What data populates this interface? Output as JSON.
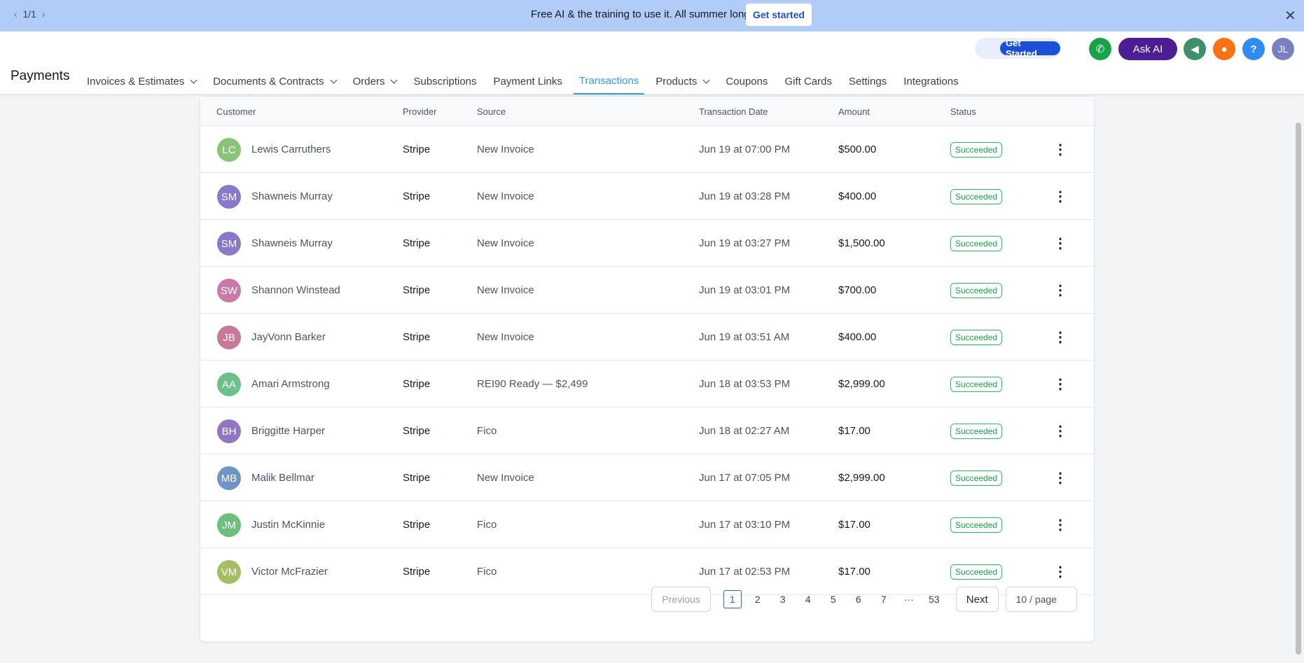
{
  "banner": {
    "pager": "1/1",
    "text": "Free AI & the training to use it. All summer long.",
    "button": "Get started"
  },
  "header": {
    "get_started": "Get Started",
    "ask_ai": "Ask AI",
    "help": "?",
    "avatar": "JL",
    "title": "Payments",
    "nav": [
      {
        "label": "Invoices & Estimates",
        "dropdown": true
      },
      {
        "label": "Documents & Contracts",
        "dropdown": true
      },
      {
        "label": "Orders",
        "dropdown": true
      },
      {
        "label": "Subscriptions"
      },
      {
        "label": "Payment Links"
      },
      {
        "label": "Transactions",
        "active": true
      },
      {
        "label": "Products",
        "dropdown": true
      },
      {
        "label": "Coupons"
      },
      {
        "label": "Gift Cards"
      },
      {
        "label": "Settings"
      },
      {
        "label": "Integrations"
      }
    ]
  },
  "table": {
    "columns": [
      "Customer",
      "Provider",
      "Source",
      "Transaction Date",
      "Amount",
      "Status"
    ],
    "rows": [
      {
        "initials": "LC",
        "color": "#8bc37a",
        "customer": "Lewis Carruthers",
        "provider": "Stripe",
        "source": "New Invoice",
        "date": "Jun 19 at 07:00 PM",
        "amount": "$500.00",
        "status": "Succeeded"
      },
      {
        "initials": "SM",
        "color": "#8a78c9",
        "customer": "Shawneis Murray",
        "provider": "Stripe",
        "source": "New Invoice",
        "date": "Jun 19 at 03:28 PM",
        "amount": "$400.00",
        "status": "Succeeded"
      },
      {
        "initials": "SM",
        "color": "#8a78c9",
        "customer": "Shawneis Murray",
        "provider": "Stripe",
        "source": "New Invoice",
        "date": "Jun 19 at 03:27 PM",
        "amount": "$1,500.00",
        "status": "Succeeded"
      },
      {
        "initials": "SW",
        "color": "#c97aa8",
        "customer": "Shannon Winstead",
        "provider": "Stripe",
        "source": "New Invoice",
        "date": "Jun 19 at 03:01 PM",
        "amount": "$700.00",
        "status": "Succeeded"
      },
      {
        "initials": "JB",
        "color": "#c9789a",
        "customer": "JayVonn Barker",
        "provider": "Stripe",
        "source": "New Invoice",
        "date": "Jun 19 at 03:51 AM",
        "amount": "$400.00",
        "status": "Succeeded"
      },
      {
        "initials": "AA",
        "color": "#6cc08a",
        "customer": "Amari Armstrong",
        "provider": "Stripe",
        "source": "REI90 Ready — $2,499",
        "date": "Jun 18 at 03:53 PM",
        "amount": "$2,999.00",
        "status": "Succeeded"
      },
      {
        "initials": "BH",
        "color": "#9077c6",
        "customer": "Briggitte Harper",
        "provider": "Stripe",
        "source": "Fico",
        "date": "Jun 18 at 02:27 AM",
        "amount": "$17.00",
        "status": "Succeeded"
      },
      {
        "initials": "MB",
        "color": "#6f95c4",
        "customer": "Malik Bellmar",
        "provider": "Stripe",
        "source": "New Invoice",
        "date": "Jun 17 at 07:05 PM",
        "amount": "$2,999.00",
        "status": "Succeeded"
      },
      {
        "initials": "JM",
        "color": "#6cbf7c",
        "customer": "Justin McKinnie",
        "provider": "Stripe",
        "source": "Fico",
        "date": "Jun 17 at 03:10 PM",
        "amount": "$17.00",
        "status": "Succeeded"
      },
      {
        "initials": "VM",
        "color": "#a6bd64",
        "customer": "Victor McFrazier",
        "provider": "Stripe",
        "source": "Fico",
        "date": "Jun 17 at 02:53 PM",
        "amount": "$17.00",
        "status": "Succeeded"
      }
    ]
  },
  "pagination": {
    "previous": "Previous",
    "pages": [
      "1",
      "2",
      "3",
      "4",
      "5",
      "6",
      "7",
      "···",
      "53"
    ],
    "current": "1",
    "next": "Next",
    "page_size": "10 / page"
  }
}
